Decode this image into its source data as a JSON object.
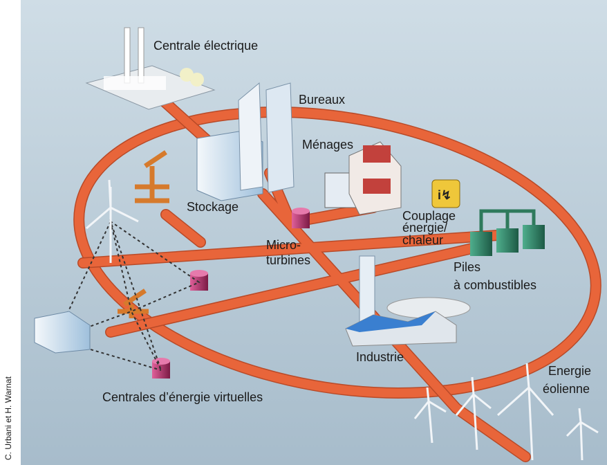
{
  "credit": "C. Urbani et H. Warnat",
  "nodes": [
    {
      "label": [
        "Centrale électrique"
      ]
    },
    {
      "label": [
        "Bureaux"
      ]
    },
    {
      "label": [
        "Ménages"
      ]
    },
    {
      "label": [
        "Stockage"
      ]
    },
    {
      "label": [
        "Micro-",
        "turbines"
      ]
    },
    {
      "label": [
        "Couplage",
        "énergie/",
        "chaleur"
      ]
    },
    {
      "label": [
        "Piles",
        "à combustibles"
      ]
    },
    {
      "label": [
        "Industrie"
      ]
    },
    {
      "label": [
        "Energie",
        "éolienne"
      ]
    },
    {
      "label": [
        "Centrales d’énergie virtuelles"
      ]
    }
  ]
}
